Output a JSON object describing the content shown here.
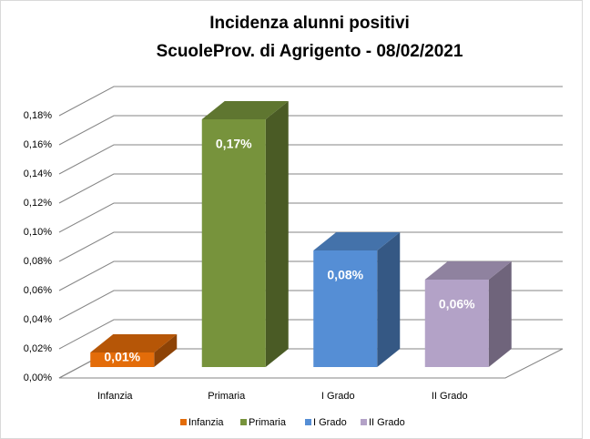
{
  "chart_data": {
    "type": "bar3d",
    "title": [
      "Incidenza alunni positivi",
      "ScuoleProv. di Agrigento - 08/02/2021"
    ],
    "categories": [
      "Infanzia",
      "Primaria",
      "I Grado",
      "II Grado"
    ],
    "series": [
      {
        "name": "Infanzia",
        "color": "#e36c09",
        "values": [
          0.01,
          null,
          null,
          null
        ],
        "value_labels": [
          "0,01%",
          null,
          null,
          null
        ]
      },
      {
        "name": "Primaria",
        "color": "#77933c",
        "values": [
          null,
          0.17,
          null,
          null
        ],
        "value_labels": [
          null,
          "0,17%",
          null,
          null
        ]
      },
      {
        "name": "I Grado",
        "color": "#558ed5",
        "values": [
          null,
          null,
          0.08,
          null
        ],
        "value_labels": [
          null,
          null,
          "0,08%",
          null
        ]
      },
      {
        "name": "II Grado",
        "color": "#b3a2c7",
        "values": [
          null,
          null,
          null,
          0.06
        ],
        "value_labels": [
          null,
          null,
          null,
          "0,06%"
        ]
      }
    ],
    "ylim": [
      0,
      0.18
    ],
    "yticks": [
      {
        "value": 0,
        "label": "0,00%"
      },
      {
        "value": 0.02,
        "label": "0,02%"
      },
      {
        "value": 0.04,
        "label": "0,04%"
      },
      {
        "value": 0.06,
        "label": "0,06%"
      },
      {
        "value": 0.08,
        "label": "0,08%"
      },
      {
        "value": 0.1,
        "label": "0,10%"
      },
      {
        "value": 0.12,
        "label": "0,12%"
      },
      {
        "value": 0.14,
        "label": "0,14%"
      },
      {
        "value": 0.16,
        "label": "0,16%"
      },
      {
        "value": 0.18,
        "label": "0,18%"
      }
    ],
    "grid": true,
    "legend": "bottom"
  }
}
